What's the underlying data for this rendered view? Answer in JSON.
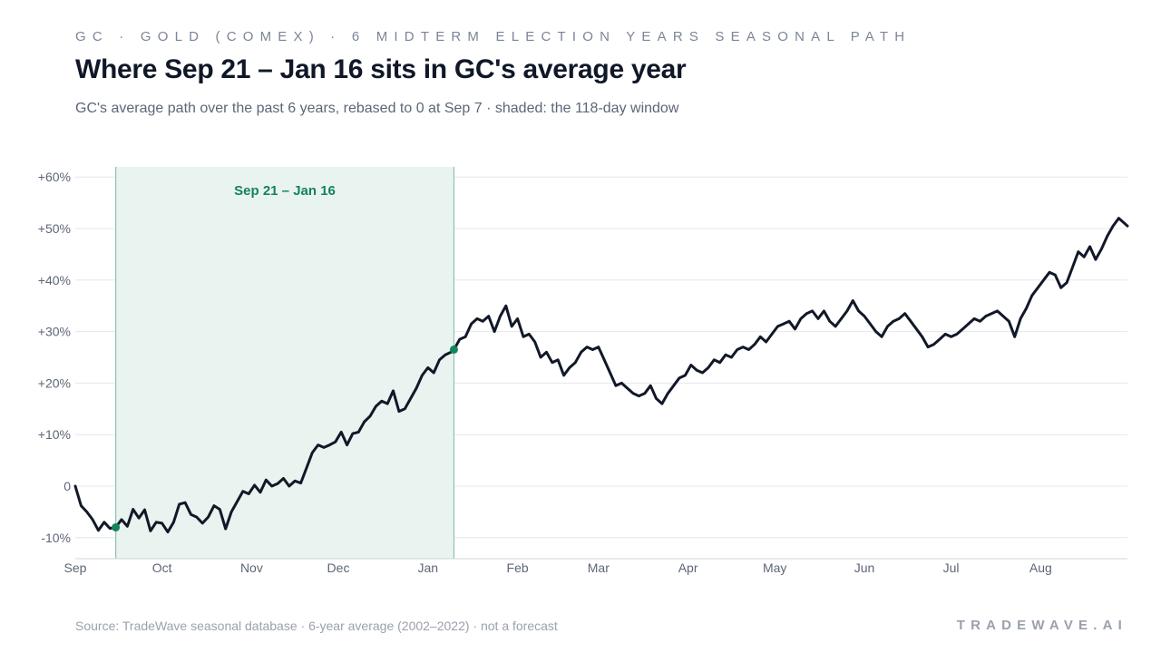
{
  "header": {
    "eyebrow": "GC · GOLD (COMEX) · 6 MIDTERM ELECTION YEARS SEASONAL PATH",
    "title": "Where Sep 21 – Jan 16 sits in GC's average year",
    "subtitle": "GC's average path over the past 6 years, rebased to 0 at Sep 7 · shaded: the 118-day window"
  },
  "footer": {
    "source": "Source: TradeWave seasonal database · 6-year average (2002–2022) · not a forecast",
    "brand": "TRADEWAVE.AI"
  },
  "colors": {
    "line": "#111827",
    "window_fill": "#e9f3ef",
    "window_border": "#8fc4ad",
    "marker": "#13855a",
    "grid": "#e4e7ec",
    "tick_text": "#5d6676"
  },
  "chart_data": {
    "type": "line",
    "title": "Where Sep 21 – Jan 16 sits in GC's average year",
    "xlabel": "",
    "ylabel": "",
    "x_range": [
      "Sep 7",
      "Sep 6"
    ],
    "ylim": [
      -14,
      62
    ],
    "y_ticks": [
      {
        "value": 60,
        "label": "+60%"
      },
      {
        "value": 50,
        "label": "+50%"
      },
      {
        "value": 40,
        "label": "+40%"
      },
      {
        "value": 30,
        "label": "+30%"
      },
      {
        "value": 20,
        "label": "+20%"
      },
      {
        "value": 10,
        "label": "+10%"
      },
      {
        "value": 0,
        "label": "0"
      },
      {
        "value": -10,
        "label": "-10%"
      }
    ],
    "x_ticks": [
      {
        "date": "Sep 7",
        "label": "Sep"
      },
      {
        "date": "Oct 7",
        "label": "Oct"
      },
      {
        "date": "Nov 7",
        "label": "Nov"
      },
      {
        "date": "Dec 7",
        "label": "Dec"
      },
      {
        "date": "Jan 7",
        "label": "Jan"
      },
      {
        "date": "Feb 7",
        "label": "Feb"
      },
      {
        "date": "Mar 7",
        "label": "Mar"
      },
      {
        "date": "Apr 7",
        "label": "Apr"
      },
      {
        "date": "May 7",
        "label": "May"
      },
      {
        "date": "Jun 7",
        "label": "Jun"
      },
      {
        "date": "Jul 7",
        "label": "Jul"
      },
      {
        "date": "Aug 7",
        "label": "Aug"
      }
    ],
    "grid": true,
    "window": {
      "start": "Sep 21",
      "end": "Jan 16",
      "label": "Sep 21 – Jan 16",
      "start_value": -8,
      "end_value": 26.5
    },
    "series": [
      {
        "points": [
          [
            "Sep 7",
            0
          ],
          [
            "Sep 9",
            -3.8
          ],
          [
            "Sep 11",
            -5.0
          ],
          [
            "Sep 13",
            -6.5
          ],
          [
            "Sep 15",
            -8.6
          ],
          [
            "Sep 17",
            -7.0
          ],
          [
            "Sep 19",
            -8.2
          ],
          [
            "Sep 21",
            -8.0
          ],
          [
            "Sep 23",
            -6.5
          ],
          [
            "Sep 25",
            -7.8
          ],
          [
            "Sep 27",
            -4.5
          ],
          [
            "Sep 29",
            -6.2
          ],
          [
            "Oct 1",
            -4.6
          ],
          [
            "Oct 3",
            -8.7
          ],
          [
            "Oct 5",
            -7.0
          ],
          [
            "Oct 7",
            -7.2
          ],
          [
            "Oct 9",
            -8.9
          ],
          [
            "Oct 11",
            -7.0
          ],
          [
            "Oct 13",
            -3.5
          ],
          [
            "Oct 15",
            -3.2
          ],
          [
            "Oct 17",
            -5.5
          ],
          [
            "Oct 19",
            -6.0
          ],
          [
            "Oct 21",
            -7.2
          ],
          [
            "Oct 23",
            -6.0
          ],
          [
            "Oct 25",
            -3.8
          ],
          [
            "Oct 27",
            -4.5
          ],
          [
            "Oct 29",
            -8.3
          ],
          [
            "Oct 31",
            -5.0
          ],
          [
            "Nov 2",
            -3.0
          ],
          [
            "Nov 4",
            -1.0
          ],
          [
            "Nov 6",
            -1.5
          ],
          [
            "Nov 8",
            0.2
          ],
          [
            "Nov 10",
            -1.2
          ],
          [
            "Nov 12",
            1.2
          ],
          [
            "Nov 14",
            0.0
          ],
          [
            "Nov 16",
            0.5
          ],
          [
            "Nov 18",
            1.5
          ],
          [
            "Nov 20",
            0.0
          ],
          [
            "Nov 22",
            1.0
          ],
          [
            "Nov 24",
            0.6
          ],
          [
            "Nov 26",
            3.5
          ],
          [
            "Nov 28",
            6.5
          ],
          [
            "Nov 30",
            8.0
          ],
          [
            "Dec 2",
            7.5
          ],
          [
            "Dec 4",
            8.0
          ],
          [
            "Dec 6",
            8.6
          ],
          [
            "Dec 8",
            10.5
          ],
          [
            "Dec 10",
            8.0
          ],
          [
            "Dec 12",
            10.2
          ],
          [
            "Dec 14",
            10.5
          ],
          [
            "Dec 16",
            12.5
          ],
          [
            "Dec 18",
            13.6
          ],
          [
            "Dec 20",
            15.5
          ],
          [
            "Dec 22",
            16.5
          ],
          [
            "Dec 24",
            16.0
          ],
          [
            "Dec 26",
            18.5
          ],
          [
            "Dec 28",
            14.5
          ],
          [
            "Dec 30",
            15.0
          ],
          [
            "Jan 1",
            17.0
          ],
          [
            "Jan 3",
            19.0
          ],
          [
            "Jan 5",
            21.5
          ],
          [
            "Jan 7",
            23.0
          ],
          [
            "Jan 9",
            22.0
          ],
          [
            "Jan 11",
            24.5
          ],
          [
            "Jan 13",
            25.5
          ],
          [
            "Jan 15",
            26.0
          ],
          [
            "Jan 16",
            26.5
          ],
          [
            "Jan 18",
            28.5
          ],
          [
            "Jan 20",
            29.0
          ],
          [
            "Jan 22",
            31.5
          ],
          [
            "Jan 24",
            32.5
          ],
          [
            "Jan 26",
            32.0
          ],
          [
            "Jan 28",
            33.0
          ],
          [
            "Jan 30",
            30.0
          ],
          [
            "Feb 1",
            33.0
          ],
          [
            "Feb 3",
            35.0
          ],
          [
            "Feb 5",
            31.0
          ],
          [
            "Feb 7",
            32.5
          ],
          [
            "Feb 9",
            29.0
          ],
          [
            "Feb 11",
            29.5
          ],
          [
            "Feb 13",
            28.0
          ],
          [
            "Feb 15",
            25.0
          ],
          [
            "Feb 17",
            26.0
          ],
          [
            "Feb 19",
            24.0
          ],
          [
            "Feb 21",
            24.5
          ],
          [
            "Feb 23",
            21.5
          ],
          [
            "Feb 25",
            23.0
          ],
          [
            "Feb 27",
            24.0
          ],
          [
            "Mar 1",
            26.0
          ],
          [
            "Mar 3",
            27.0
          ],
          [
            "Mar 5",
            26.5
          ],
          [
            "Mar 7",
            27.0
          ],
          [
            "Mar 9",
            24.5
          ],
          [
            "Mar 11",
            22.0
          ],
          [
            "Mar 13",
            19.5
          ],
          [
            "Mar 15",
            20.0
          ],
          [
            "Mar 17",
            19.0
          ],
          [
            "Mar 19",
            18.0
          ],
          [
            "Mar 21",
            17.5
          ],
          [
            "Mar 23",
            18.0
          ],
          [
            "Mar 25",
            19.5
          ],
          [
            "Mar 27",
            17.0
          ],
          [
            "Mar 29",
            16.0
          ],
          [
            "Mar 31",
            18.0
          ],
          [
            "Apr 2",
            19.5
          ],
          [
            "Apr 4",
            21.0
          ],
          [
            "Apr 6",
            21.5
          ],
          [
            "Apr 8",
            23.5
          ],
          [
            "Apr 10",
            22.5
          ],
          [
            "Apr 12",
            22.0
          ],
          [
            "Apr 14",
            23.0
          ],
          [
            "Apr 16",
            24.5
          ],
          [
            "Apr 18",
            24.0
          ],
          [
            "Apr 20",
            25.5
          ],
          [
            "Apr 22",
            25.0
          ],
          [
            "Apr 24",
            26.5
          ],
          [
            "Apr 26",
            27.0
          ],
          [
            "Apr 28",
            26.5
          ],
          [
            "Apr 30",
            27.5
          ],
          [
            "May 2",
            29.0
          ],
          [
            "May 4",
            28.0
          ],
          [
            "May 6",
            29.5
          ],
          [
            "May 8",
            31.0
          ],
          [
            "May 10",
            31.5
          ],
          [
            "May 12",
            32.0
          ],
          [
            "May 14",
            30.5
          ],
          [
            "May 16",
            32.5
          ],
          [
            "May 18",
            33.5
          ],
          [
            "May 20",
            34.0
          ],
          [
            "May 22",
            32.5
          ],
          [
            "May 24",
            34.0
          ],
          [
            "May 26",
            32.0
          ],
          [
            "May 28",
            31.0
          ],
          [
            "May 30",
            32.5
          ],
          [
            "Jun 1",
            34.0
          ],
          [
            "Jun 3",
            36.0
          ],
          [
            "Jun 5",
            34.0
          ],
          [
            "Jun 7",
            33.0
          ],
          [
            "Jun 9",
            31.5
          ],
          [
            "Jun 11",
            30.0
          ],
          [
            "Jun 13",
            29.0
          ],
          [
            "Jun 15",
            31.0
          ],
          [
            "Jun 17",
            32.0
          ],
          [
            "Jun 19",
            32.5
          ],
          [
            "Jun 21",
            33.5
          ],
          [
            "Jun 23",
            32.0
          ],
          [
            "Jun 25",
            30.5
          ],
          [
            "Jun 27",
            29.0
          ],
          [
            "Jun 29",
            27.0
          ],
          [
            "Jul 1",
            27.5
          ],
          [
            "Jul 3",
            28.5
          ],
          [
            "Jul 5",
            29.5
          ],
          [
            "Jul 7",
            29.0
          ],
          [
            "Jul 9",
            29.5
          ],
          [
            "Jul 11",
            30.5
          ],
          [
            "Jul 13",
            31.5
          ],
          [
            "Jul 15",
            32.5
          ],
          [
            "Jul 17",
            32.0
          ],
          [
            "Jul 19",
            33.0
          ],
          [
            "Jul 21",
            33.5
          ],
          [
            "Jul 23",
            34.0
          ],
          [
            "Jul 25",
            33.0
          ],
          [
            "Jul 27",
            32.0
          ],
          [
            "Jul 29",
            29.0
          ],
          [
            "Jul 31",
            32.5
          ],
          [
            "Aug 2",
            34.5
          ],
          [
            "Aug 4",
            37.0
          ],
          [
            "Aug 6",
            38.5
          ],
          [
            "Aug 8",
            40.0
          ],
          [
            "Aug 10",
            41.5
          ],
          [
            "Aug 12",
            41.0
          ],
          [
            "Aug 14",
            38.5
          ],
          [
            "Aug 16",
            39.5
          ],
          [
            "Aug 18",
            42.5
          ],
          [
            "Aug 20",
            45.5
          ],
          [
            "Aug 22",
            44.5
          ],
          [
            "Aug 24",
            46.5
          ],
          [
            "Aug 26",
            44.0
          ],
          [
            "Aug 28",
            46.0
          ],
          [
            "Aug 30",
            48.5
          ],
          [
            "Sep 1",
            50.5
          ],
          [
            "Sep 3",
            52.0
          ],
          [
            "Sep 5",
            51.0
          ],
          [
            "Sep 6",
            50.5
          ]
        ]
      }
    ]
  }
}
